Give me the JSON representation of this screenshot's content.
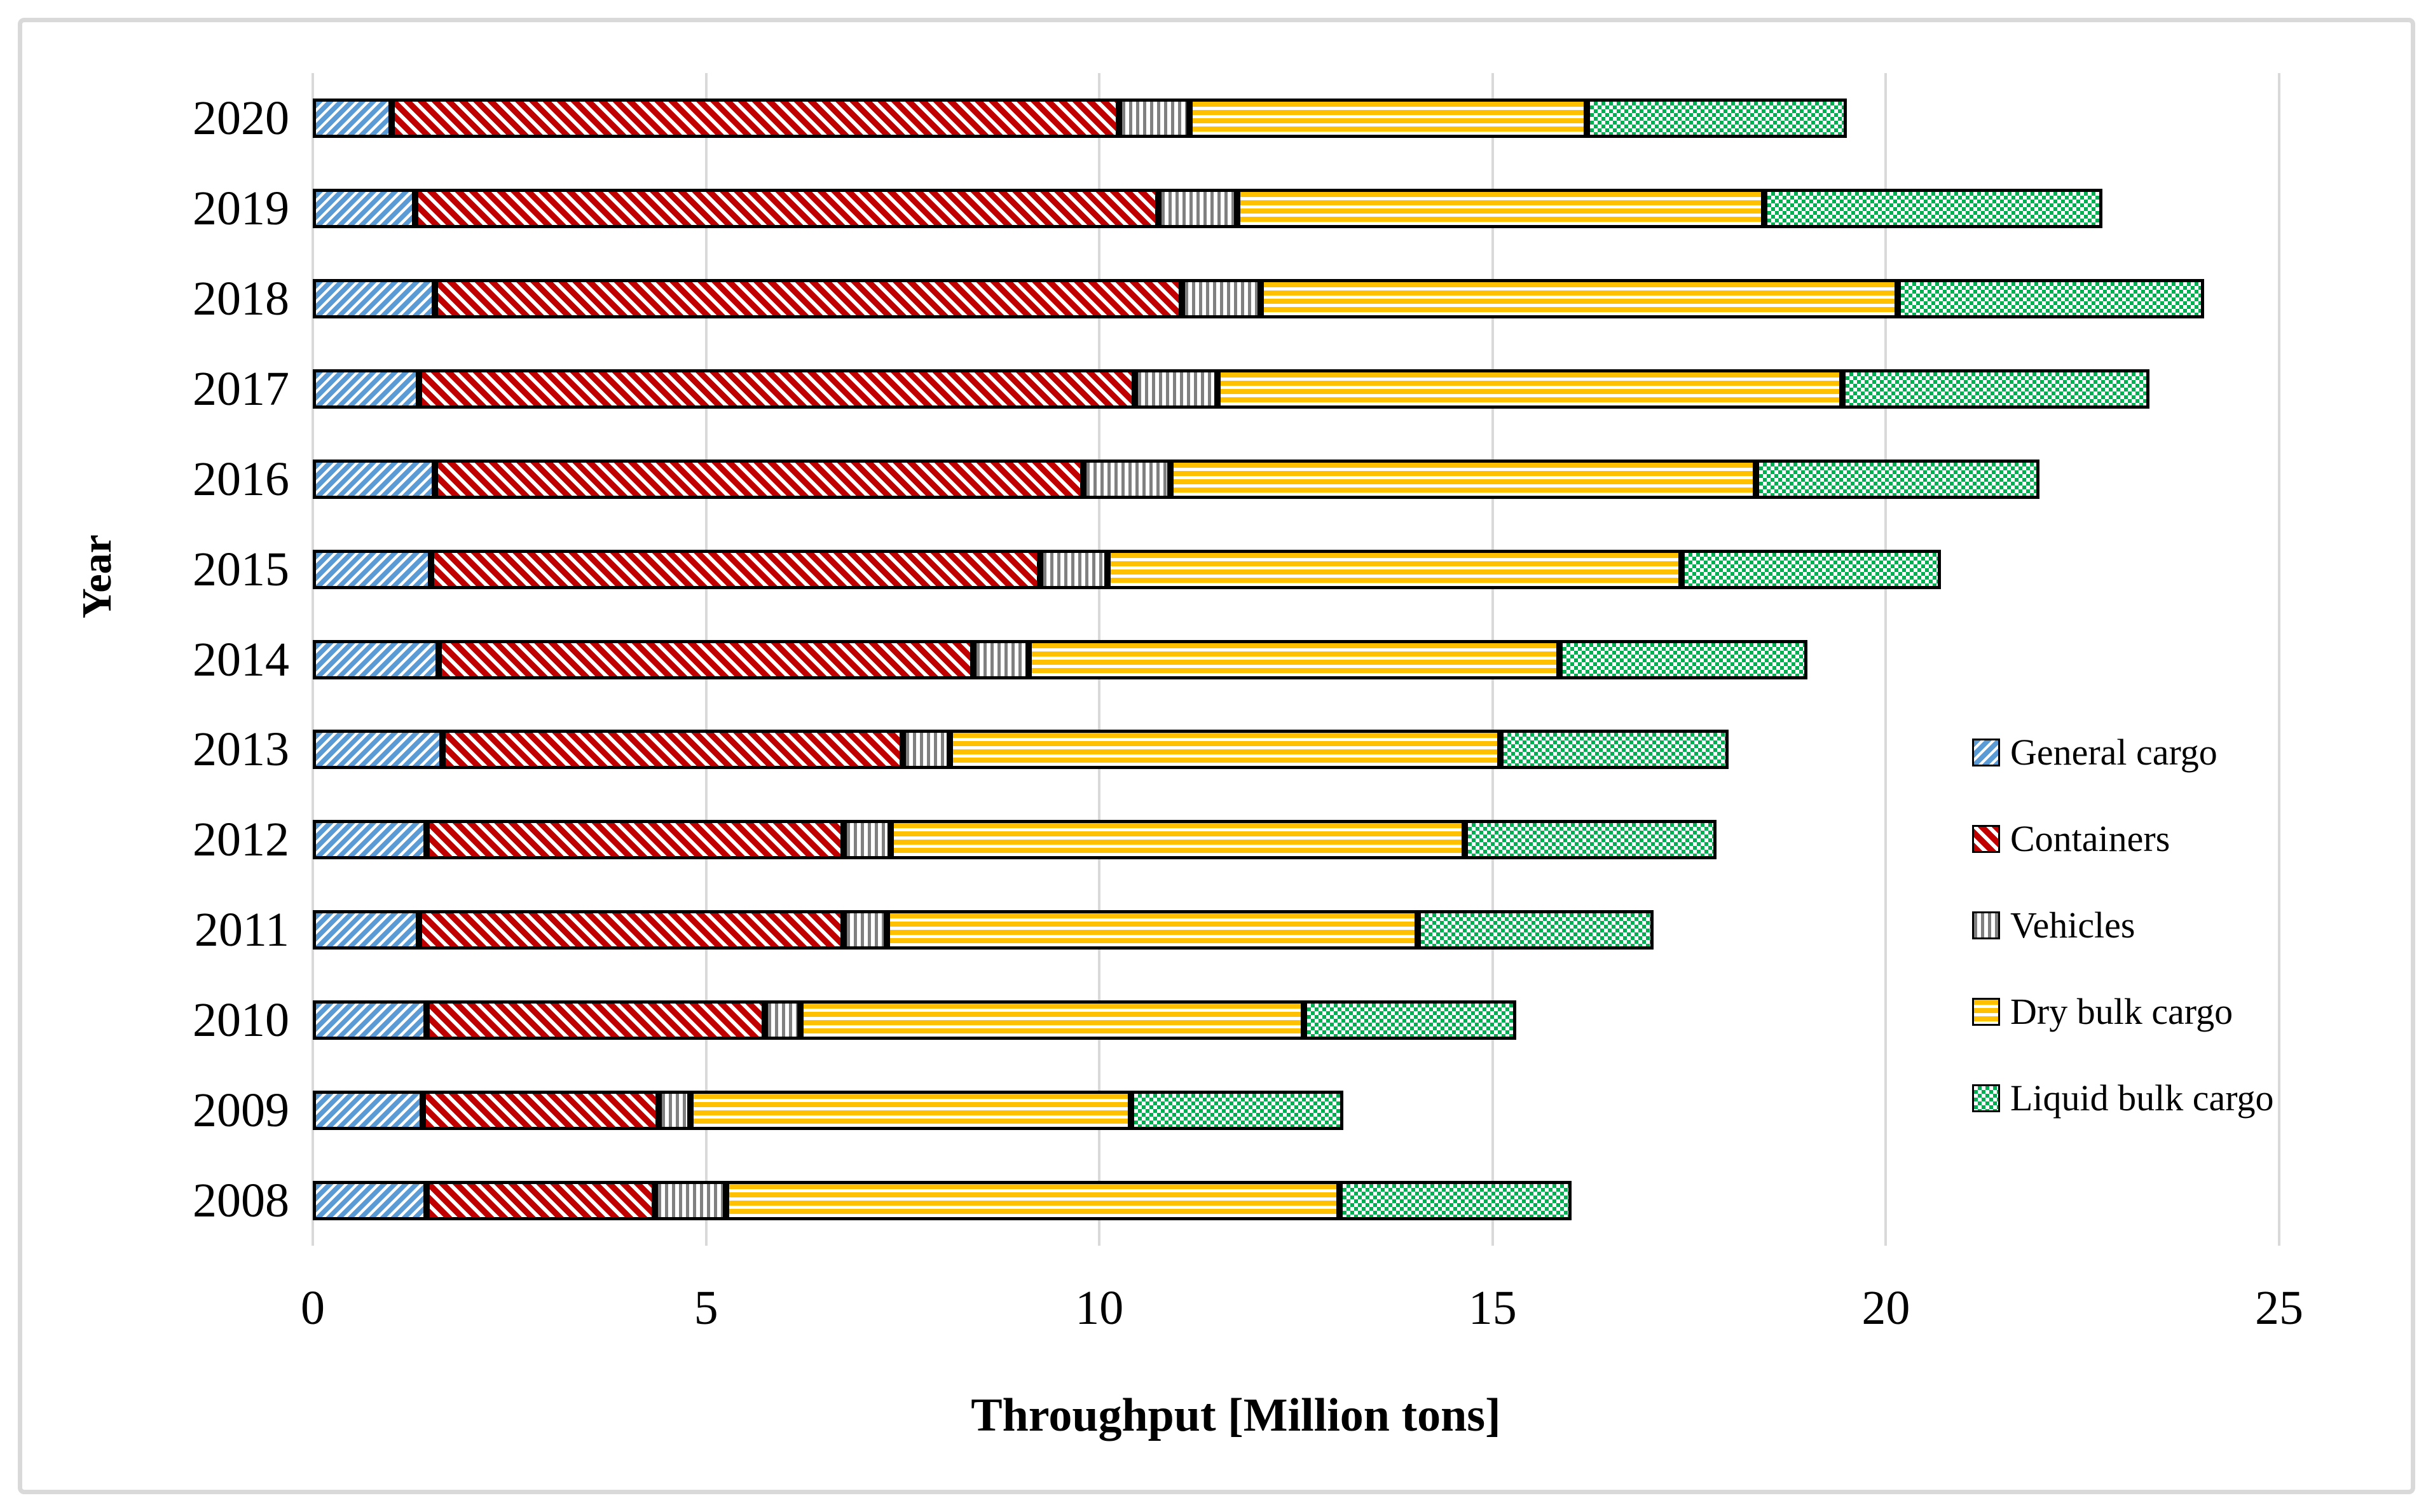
{
  "chart_data": {
    "type": "bar",
    "orientation": "horizontal",
    "stacked": true,
    "title": "",
    "xlabel": "Throughput [Million tons]",
    "ylabel": "Year",
    "xlim": [
      0,
      25
    ],
    "xticks": [
      0,
      5,
      10,
      15,
      20,
      25
    ],
    "grid": "vertical-gridlines-on",
    "legend_position": "right-middle",
    "categories": [
      "2020",
      "2019",
      "2018",
      "2017",
      "2016",
      "2015",
      "2014",
      "2013",
      "2012",
      "2011",
      "2010",
      "2009",
      "2008"
    ],
    "series": [
      {
        "name": "General cargo",
        "color": "#5B9BD5",
        "pattern": "diagonal-stripes-up",
        "values": [
          1.0,
          1.3,
          1.55,
          1.35,
          1.55,
          1.5,
          1.6,
          1.65,
          1.45,
          1.35,
          1.45,
          1.4,
          1.45
        ]
      },
      {
        "name": "Containers",
        "color": "#C00000",
        "pattern": "diagonal-stripes-down",
        "values": [
          9.25,
          9.45,
          9.5,
          9.1,
          8.25,
          7.75,
          6.8,
          5.85,
          5.3,
          5.4,
          4.3,
          3.0,
          2.9
        ]
      },
      {
        "name": "Vehicles",
        "color": "#808080",
        "pattern": "vertical-stripes",
        "values": [
          0.9,
          1.0,
          1.0,
          1.05,
          1.1,
          0.85,
          0.7,
          0.6,
          0.6,
          0.55,
          0.45,
          0.4,
          0.9
        ]
      },
      {
        "name": "Dry bulk cargo",
        "color": "#FFC000",
        "pattern": "horizontal-stripes",
        "values": [
          5.05,
          6.7,
          8.1,
          7.95,
          7.45,
          7.3,
          6.75,
          7.0,
          7.3,
          6.75,
          6.4,
          5.6,
          7.8
        ]
      },
      {
        "name": "Liquid bulk cargo",
        "color": "#00B050",
        "pattern": "checkerboard",
        "values": [
          3.3,
          4.3,
          3.9,
          3.9,
          3.6,
          3.3,
          3.15,
          2.9,
          3.2,
          3.0,
          2.7,
          2.7,
          2.95
        ]
      }
    ],
    "totals": [
      19.5,
      22.75,
      24.05,
      23.35,
      21.95,
      20.7,
      19.0,
      18.0,
      17.85,
      17.05,
      15.3,
      13.1,
      16.0
    ],
    "colors": {
      "gridline": "#D9D9D9",
      "figure_border": "#D9D9D9",
      "bar_outline": "#000000",
      "text": "#000000"
    }
  }
}
